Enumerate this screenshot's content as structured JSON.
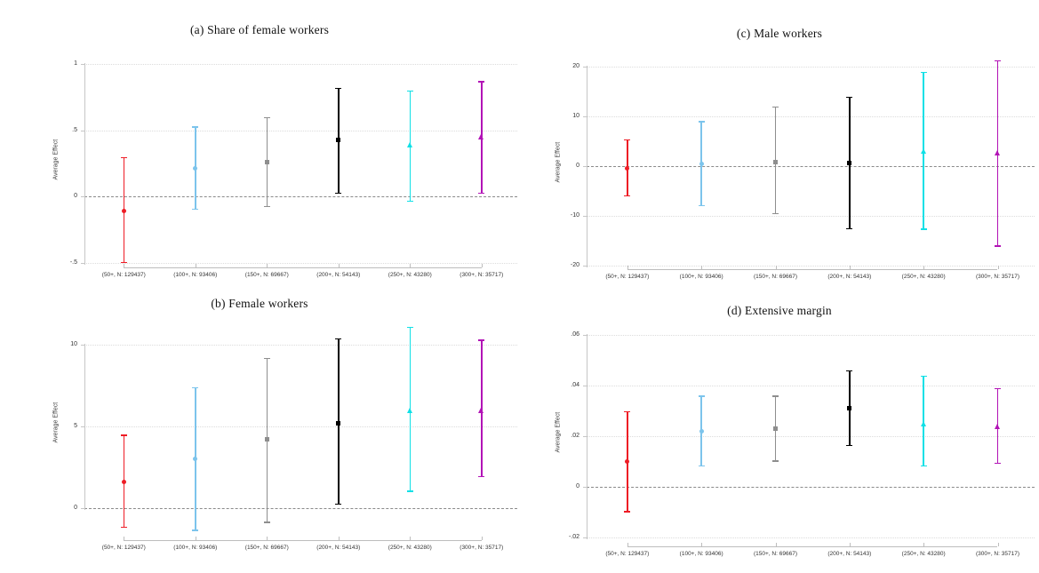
{
  "figure": {
    "background": "#ffffff",
    "description": "2x2 grid of coefficient plots with 95% confidence intervals by firm-size threshold"
  },
  "categories": [
    "(50+, N: 129437)",
    "(100+, N: 93406)",
    "(150+, N: 69667)",
    "(200+, N: 54143)",
    "(250+, N: 43280)",
    "(300+, N: 35717)"
  ],
  "palette": {
    "red": "#ee1c25",
    "light_blue": "#7cc4ec",
    "gray": "#8e8e8e",
    "black": "#000000",
    "cyan": "#0fe0e6",
    "magenta": "#b213b6"
  },
  "chart_data": [
    {
      "panel": "a",
      "type": "scatter",
      "subtype": "coefplot_confidence_intervals",
      "title": "(a) Share of female workers",
      "ylabel": "Average Effect",
      "xlabel": "",
      "ytick_labels": [
        "1",
        ".5",
        "0",
        "-.5"
      ],
      "ytick_values": [
        1,
        0.5,
        0,
        -0.5
      ],
      "ylim": [
        -0.5,
        1
      ],
      "zero_line": true,
      "grid": "horizontal-dotted",
      "legend": "none",
      "categories": [
        "(50+, N: 129437)",
        "(100+, N: 93406)",
        "(150+, N: 69667)",
        "(200+, N: 54143)",
        "(250+, N: 43280)",
        "(300+, N: 35717)"
      ],
      "points": [
        {
          "category": "(50+, N: 129437)",
          "est": -0.11,
          "ci_low": -0.5,
          "ci_high": 0.3,
          "color": "#ee1c25",
          "marker": "circle"
        },
        {
          "category": "(100+, N: 93406)",
          "est": 0.21,
          "ci_low": -0.1,
          "ci_high": 0.53,
          "color": "#7cc4ec",
          "marker": "circle"
        },
        {
          "category": "(150+, N: 69667)",
          "est": 0.26,
          "ci_low": -0.08,
          "ci_high": 0.6,
          "color": "#8e8e8e",
          "marker": "square"
        },
        {
          "category": "(200+, N: 54143)",
          "est": 0.43,
          "ci_low": 0.02,
          "ci_high": 0.82,
          "color": "#000000",
          "marker": "square"
        },
        {
          "category": "(250+, N: 43280)",
          "est": 0.39,
          "ci_low": -0.04,
          "ci_high": 0.8,
          "color": "#0fe0e6",
          "marker": "triangle"
        },
        {
          "category": "(300+, N: 35717)",
          "est": 0.45,
          "ci_low": 0.02,
          "ci_high": 0.87,
          "color": "#b213b6",
          "marker": "triangle"
        }
      ]
    },
    {
      "panel": "b",
      "type": "scatter",
      "subtype": "coefplot_confidence_intervals",
      "title": "(b) Female workers",
      "ylabel": "Average Effect",
      "xlabel": "",
      "ytick_labels": [
        "10",
        "5",
        "0"
      ],
      "ytick_values": [
        10,
        5,
        0
      ],
      "ylim": [
        0,
        10
      ],
      "zero_line": true,
      "grid": "horizontal-dotted",
      "legend": "none",
      "categories": [
        "(50+, N: 129437)",
        "(100+, N: 93406)",
        "(150+, N: 69667)",
        "(200+, N: 54143)",
        "(250+, N: 43280)",
        "(300+, N: 35717)"
      ],
      "points": [
        {
          "category": "(50+, N: 129437)",
          "est": 1.6,
          "ci_low": -1.2,
          "ci_high": 4.5,
          "color": "#ee1c25",
          "marker": "circle"
        },
        {
          "category": "(100+, N: 93406)",
          "est": 3.0,
          "ci_low": -1.4,
          "ci_high": 7.4,
          "color": "#7cc4ec",
          "marker": "circle"
        },
        {
          "category": "(150+, N: 69667)",
          "est": 4.2,
          "ci_low": -0.9,
          "ci_high": 9.2,
          "color": "#8e8e8e",
          "marker": "square"
        },
        {
          "category": "(200+, N: 54143)",
          "est": 5.2,
          "ci_low": 0.2,
          "ci_high": 10.4,
          "color": "#000000",
          "marker": "square"
        },
        {
          "category": "(250+, N: 43280)",
          "est": 6.0,
          "ci_low": 1.0,
          "ci_high": 11.1,
          "color": "#0fe0e6",
          "marker": "triangle"
        },
        {
          "category": "(300+, N: 35717)",
          "est": 6.0,
          "ci_low": 1.9,
          "ci_high": 10.3,
          "color": "#b213b6",
          "marker": "triangle"
        }
      ]
    },
    {
      "panel": "c",
      "type": "scatter",
      "subtype": "coefplot_confidence_intervals",
      "title": "(c) Male workers",
      "ylabel": "Average Effect",
      "xlabel": "",
      "ytick_labels": [
        "20",
        "10",
        "0",
        "-10",
        "-20"
      ],
      "ytick_values": [
        20,
        10,
        0,
        -10,
        -20
      ],
      "ylim": [
        -20,
        20
      ],
      "zero_line": true,
      "grid": "horizontal-dotted",
      "legend": "none",
      "categories": [
        "(50+, N: 129437)",
        "(100+, N: 93406)",
        "(150+, N: 69667)",
        "(200+, N: 54143)",
        "(250+, N: 43280)",
        "(300+, N: 35717)"
      ],
      "points": [
        {
          "category": "(50+, N: 129437)",
          "est": -0.4,
          "ci_low": -6.1,
          "ci_high": 5.4,
          "color": "#ee1c25",
          "marker": "circle"
        },
        {
          "category": "(100+, N: 93406)",
          "est": 0.5,
          "ci_low": -8.1,
          "ci_high": 9.1,
          "color": "#7cc4ec",
          "marker": "circle"
        },
        {
          "category": "(150+, N: 69667)",
          "est": 0.8,
          "ci_low": -9.7,
          "ci_high": 12.0,
          "color": "#8e8e8e",
          "marker": "square"
        },
        {
          "category": "(200+, N: 54143)",
          "est": 0.6,
          "ci_low": -12.7,
          "ci_high": 14.0,
          "color": "#000000",
          "marker": "square"
        },
        {
          "category": "(250+, N: 43280)",
          "est": 3.1,
          "ci_low": -12.8,
          "ci_high": 19.0,
          "color": "#0fe0e6",
          "marker": "triangle"
        },
        {
          "category": "(300+, N: 35717)",
          "est": 2.7,
          "ci_low": -16.2,
          "ci_high": 21.3,
          "color": "#b213b6",
          "marker": "triangle"
        }
      ]
    },
    {
      "panel": "d",
      "type": "scatter",
      "subtype": "coefplot_confidence_intervals",
      "title": "(d) Extensive margin",
      "ylabel": "Average Effect",
      "xlabel": "",
      "ytick_labels": [
        ".06",
        ".04",
        ".02",
        "0",
        "-.02"
      ],
      "ytick_values": [
        0.06,
        0.04,
        0.02,
        0,
        -0.02
      ],
      "ylim": [
        -0.02,
        0.06
      ],
      "zero_line": true,
      "grid": "horizontal-dotted",
      "legend": "none",
      "categories": [
        "(50+, N: 129437)",
        "(100+, N: 93406)",
        "(150+, N: 69667)",
        "(200+, N: 54143)",
        "(250+, N: 43280)",
        "(300+, N: 35717)"
      ],
      "points": [
        {
          "category": "(50+, N: 129437)",
          "est": 0.01,
          "ci_low": -0.01,
          "ci_high": 0.03,
          "color": "#ee1c25",
          "marker": "circle"
        },
        {
          "category": "(100+, N: 93406)",
          "est": 0.022,
          "ci_low": 0.008,
          "ci_high": 0.036,
          "color": "#7cc4ec",
          "marker": "circle"
        },
        {
          "category": "(150+, N: 69667)",
          "est": 0.023,
          "ci_low": 0.01,
          "ci_high": 0.036,
          "color": "#8e8e8e",
          "marker": "square"
        },
        {
          "category": "(200+, N: 54143)",
          "est": 0.031,
          "ci_low": 0.016,
          "ci_high": 0.046,
          "color": "#000000",
          "marker": "square"
        },
        {
          "category": "(250+, N: 43280)",
          "est": 0.025,
          "ci_low": 0.008,
          "ci_high": 0.044,
          "color": "#0fe0e6",
          "marker": "triangle"
        },
        {
          "category": "(300+, N: 35717)",
          "est": 0.024,
          "ci_low": 0.009,
          "ci_high": 0.039,
          "color": "#b213b6",
          "marker": "triangle"
        }
      ]
    }
  ]
}
